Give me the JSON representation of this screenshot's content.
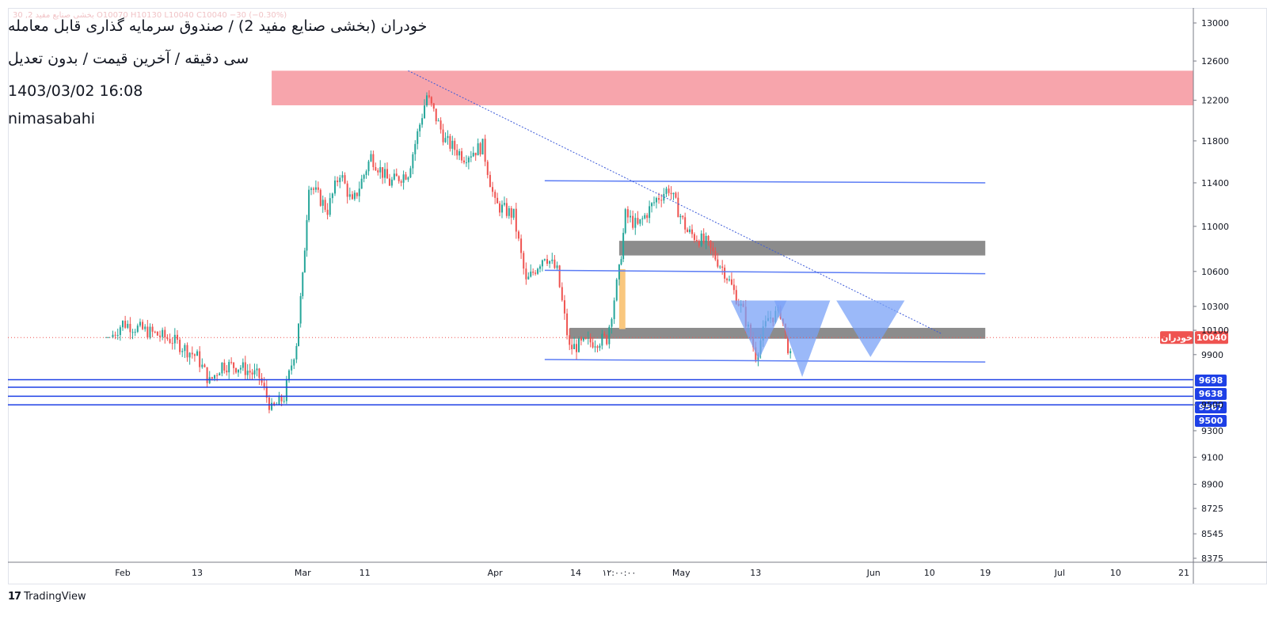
{
  "header": {
    "faded_ticker": "30 ,2 بخشی صنایع مفید O10070 H10130 L10040 C10040 −30 (−0.30%)",
    "title": "خودران (بخشی صنایع مفید 2) / صندوق سرمایه گذاری قابل معامله",
    "subtitle": "سی دقیقه / آخرین قیمت / بدون تعدیل",
    "datetime": "1403/03/02 16:08",
    "author": "nimasabahi"
  },
  "branding": {
    "logo_text": "TradingView",
    "logo_mark": "17"
  },
  "colors": {
    "up": "#26a69a",
    "down": "#ef5350",
    "resistance_zone": "#f7a5ac",
    "gray_zone": "#8c8c8c",
    "channel_line": "#5b7cf5",
    "level_line": "#1e40e6",
    "triangle_fill": "#7aa2f7",
    "orange_bar": "#f9c77e",
    "price_line": "#ef5350"
  },
  "chart_data": {
    "type": "candlestick",
    "symbol": "خودران",
    "timeframe": "سی دقیقه",
    "last_price": 10040,
    "last_price_label": "10040",
    "symbol_tag": "خودران",
    "y_scale": "log",
    "y_axis_ticks": [
      "13000",
      "12600",
      "12200",
      "11800",
      "11400",
      "11000",
      "10600",
      "10300",
      "10100",
      "9900",
      "9500",
      "9300",
      "9100",
      "8900",
      "8725",
      "8545",
      "8375"
    ],
    "x_axis_ticks": [
      "Feb",
      "13",
      "Mar",
      "11",
      "Apr",
      "14",
      "۱۲:۰۰:۰۰",
      "May",
      "13",
      "Jun",
      "10",
      "19",
      "Jul",
      "10",
      "21"
    ],
    "x_axis_dates": [
      "2024-02-01",
      "2024-02-13",
      "2024-03-01",
      "2024-03-11",
      "2024-04-01",
      "2024-04-14",
      "2024-04-21",
      "2024-05-01",
      "2024-05-13",
      "2024-06-01",
      "2024-06-10",
      "2024-06-19",
      "2024-07-01",
      "2024-07-10",
      "2024-07-21"
    ],
    "price_levels": [
      {
        "label": "9698",
        "value": 9698
      },
      {
        "label": "9638",
        "value": 9638
      },
      {
        "label": "9567",
        "value": 9567
      },
      {
        "label": "9500",
        "value": 9500
      }
    ],
    "close_path": [
      {
        "x": "2024-01-30",
        "y": 10040
      },
      {
        "x": "2024-02-01",
        "y": 10160
      },
      {
        "x": "2024-02-05",
        "y": 10090
      },
      {
        "x": "2024-02-09",
        "y": 10020
      },
      {
        "x": "2024-02-13",
        "y": 9880
      },
      {
        "x": "2024-02-15",
        "y": 9680
      },
      {
        "x": "2024-02-17",
        "y": 9820
      },
      {
        "x": "2024-02-20",
        "y": 9800
      },
      {
        "x": "2024-02-23",
        "y": 9720
      },
      {
        "x": "2024-02-25",
        "y": 9460
      },
      {
        "x": "2024-02-27",
        "y": 9560
      },
      {
        "x": "2024-02-29",
        "y": 10000
      },
      {
        "x": "2024-03-01",
        "y": 10540
      },
      {
        "x": "2024-03-02",
        "y": 11400
      },
      {
        "x": "2024-03-05",
        "y": 11150
      },
      {
        "x": "2024-03-07",
        "y": 11500
      },
      {
        "x": "2024-03-09",
        "y": 11200
      },
      {
        "x": "2024-03-12",
        "y": 11650
      },
      {
        "x": "2024-03-15",
        "y": 11400
      },
      {
        "x": "2024-03-18",
        "y": 11500
      },
      {
        "x": "2024-03-21",
        "y": 12250
      },
      {
        "x": "2024-03-24",
        "y": 11800
      },
      {
        "x": "2024-03-27",
        "y": 11650
      },
      {
        "x": "2024-03-30",
        "y": 11750
      },
      {
        "x": "2024-04-01",
        "y": 11200
      },
      {
        "x": "2024-04-04",
        "y": 11100
      },
      {
        "x": "2024-04-06",
        "y": 10500
      },
      {
        "x": "2024-04-09",
        "y": 10750
      },
      {
        "x": "2024-04-11",
        "y": 10600
      },
      {
        "x": "2024-04-13",
        "y": 9950
      },
      {
        "x": "2024-04-16",
        "y": 10000
      },
      {
        "x": "2024-04-19",
        "y": 10030
      },
      {
        "x": "2024-04-21",
        "y": 10600
      },
      {
        "x": "2024-04-22",
        "y": 11100
      },
      {
        "x": "2024-04-24",
        "y": 11000
      },
      {
        "x": "2024-04-27",
        "y": 11250
      },
      {
        "x": "2024-04-29",
        "y": 11350
      },
      {
        "x": "2024-05-02",
        "y": 10950
      },
      {
        "x": "2024-05-05",
        "y": 10850
      },
      {
        "x": "2024-05-08",
        "y": 10600
      },
      {
        "x": "2024-05-11",
        "y": 10250
      },
      {
        "x": "2024-05-13",
        "y": 9900
      },
      {
        "x": "2024-05-15",
        "y": 10200
      },
      {
        "x": "2024-05-17",
        "y": 10250
      },
      {
        "x": "2024-05-19",
        "y": 9780
      },
      {
        "x": "2024-05-21",
        "y": 10040
      }
    ],
    "annotations": {
      "resistance_zone": {
        "from": "2024-02-25",
        "to": "2024-07-25",
        "low": 12150,
        "high": 12500
      },
      "gray_zones": [
        {
          "from": "2024-04-21",
          "to": "2024-06-19",
          "low": 10740,
          "high": 10870
        },
        {
          "from": "2024-04-13",
          "to": "2024-06-19",
          "low": 10030,
          "high": 10120
        }
      ],
      "channel_lines": [
        {
          "x1": "2024-04-09",
          "y1": 11420,
          "x2": "2024-06-19",
          "y2": 11400
        },
        {
          "x1": "2024-04-09",
          "y1": 10610,
          "x2": "2024-06-19",
          "y2": 10580
        },
        {
          "x1": "2024-04-09",
          "y1": 9860,
          "x2": "2024-06-19",
          "y2": 9840
        }
      ],
      "trendline": {
        "x1": "2024-03-18",
        "y1": 12500,
        "x2": "2024-06-12",
        "y2": 10070
      },
      "triangles": [
        {
          "x_left": "2024-05-09",
          "x_right": "2024-05-18",
          "top": 10350,
          "bottom": 9860
        },
        {
          "x_left": "2024-05-16",
          "x_right": "2024-05-25",
          "top": 10350,
          "bottom": 9720
        },
        {
          "x_left": "2024-05-26",
          "x_right": "2024-06-06",
          "top": 10350,
          "bottom": 9880
        }
      ],
      "orange_bar": {
        "from": "2024-04-21",
        "to": "2024-04-22",
        "low": 10110,
        "high": 10620
      }
    }
  }
}
